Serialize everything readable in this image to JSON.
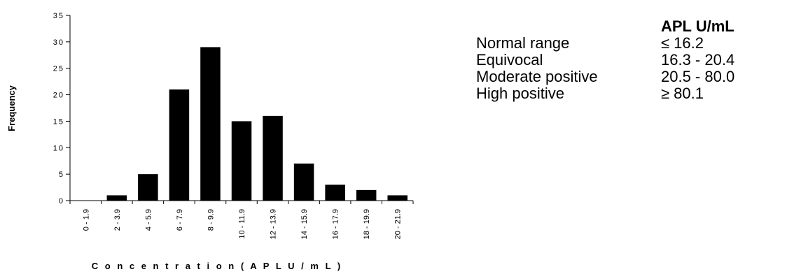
{
  "chart_data": {
    "type": "bar",
    "categories": [
      "0 - 1.9",
      "2 - 3.9",
      "4 - 5.9",
      "6 - 7.9",
      "8 - 9.9",
      "10 - 11.9",
      "12 - 13.9",
      "14 - 15.9",
      "16 - 17.9",
      "18 - 19.9",
      "20 - 21.9"
    ],
    "values": [
      0,
      1,
      5,
      21,
      29,
      15,
      16,
      7,
      3,
      2,
      1
    ],
    "xlabel": "C o n c e n t r a t i o n  ( A P L  U / m L )",
    "ylabel": "Frequency",
    "ylim": [
      0,
      35
    ],
    "yticks": [
      0,
      5,
      10,
      15,
      20,
      25,
      30,
      35
    ],
    "bar_color": "#000000",
    "grid": false
  },
  "ranges_table": {
    "header": "APL U/mL",
    "rows": [
      {
        "label": "Normal range",
        "value": "≤ 16.2"
      },
      {
        "label": "Equivocal",
        "value": "16.3 - 20.4"
      },
      {
        "label": "Moderate positive",
        "value": "20.5 - 80.0"
      },
      {
        "label": "High positive",
        "value": "≥ 80.1"
      }
    ]
  }
}
